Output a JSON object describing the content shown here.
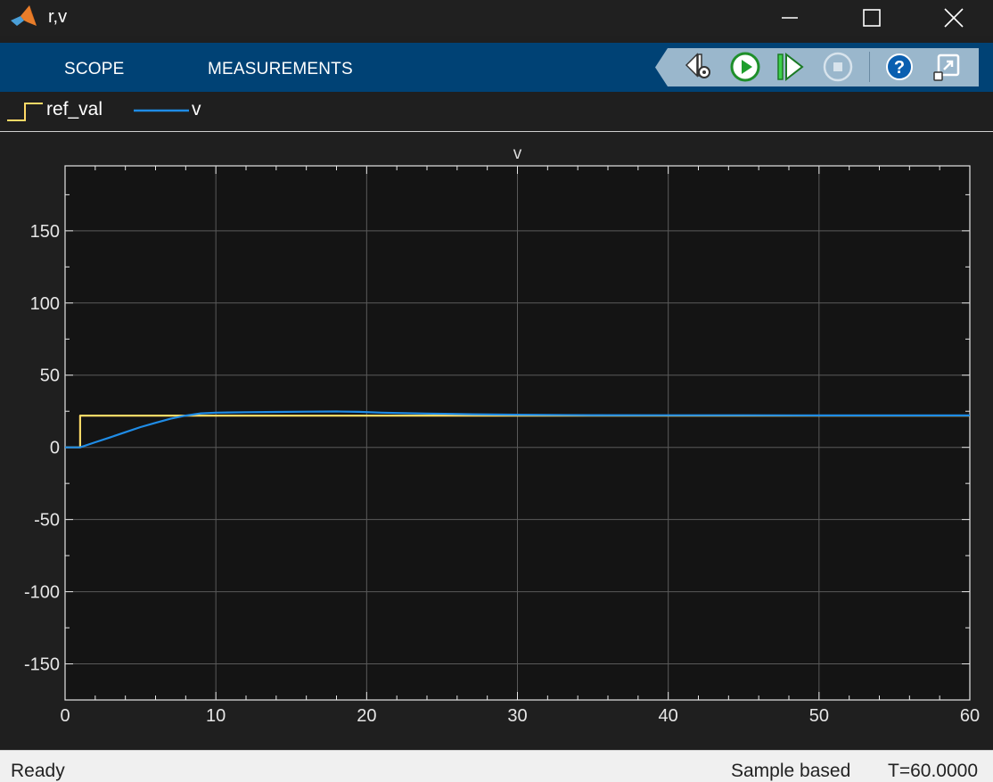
{
  "window": {
    "title": "r,v",
    "controls": [
      "minimize-icon",
      "maximize-icon",
      "close-icon"
    ]
  },
  "toolstrip": {
    "tabs": [
      {
        "label": "SCOPE"
      },
      {
        "label": "MEASUREMENTS"
      }
    ],
    "tools": [
      {
        "name": "settings-step-back-icon"
      },
      {
        "name": "run-icon"
      },
      {
        "name": "step-forward-icon"
      },
      {
        "name": "stop-icon"
      },
      {
        "name": "help-icon"
      },
      {
        "name": "undock-icon"
      }
    ]
  },
  "legend": {
    "items": [
      {
        "label": "ref_val",
        "color": "#ffd966"
      },
      {
        "label": "v",
        "color": "#1f8ce6"
      }
    ]
  },
  "status": {
    "left": "Ready",
    "mode": "Sample based",
    "time": "T=60.0000"
  },
  "chart_data": {
    "type": "line",
    "title": "v",
    "xlim": [
      0,
      60
    ],
    "ylim": [
      -175,
      195
    ],
    "x_ticks": [
      0,
      10,
      20,
      30,
      40,
      50,
      60
    ],
    "y_ticks": [
      -150,
      -100,
      -50,
      0,
      50,
      100,
      150
    ],
    "grid": true,
    "background": "#141414",
    "series": [
      {
        "name": "ref_val",
        "color": "#ffd966",
        "x": [
          0,
          1,
          1,
          60
        ],
        "y": [
          0,
          0,
          22,
          22
        ]
      },
      {
        "name": "v",
        "color": "#1f8ce6",
        "x": [
          0,
          1,
          2,
          3,
          4,
          5,
          6,
          7,
          8,
          9,
          10,
          12,
          14,
          16,
          18,
          19.5,
          21,
          24,
          27,
          30,
          35,
          40,
          45,
          50,
          55,
          60
        ],
        "y": [
          0,
          0,
          3.5,
          7,
          10.5,
          14,
          17,
          19.8,
          22,
          23.5,
          24,
          24.3,
          24.5,
          24.7,
          24.8,
          24.6,
          24.0,
          23.4,
          22.9,
          22.6,
          22.3,
          22.2,
          22.2,
          22.1,
          22.1,
          22.1
        ]
      }
    ]
  }
}
